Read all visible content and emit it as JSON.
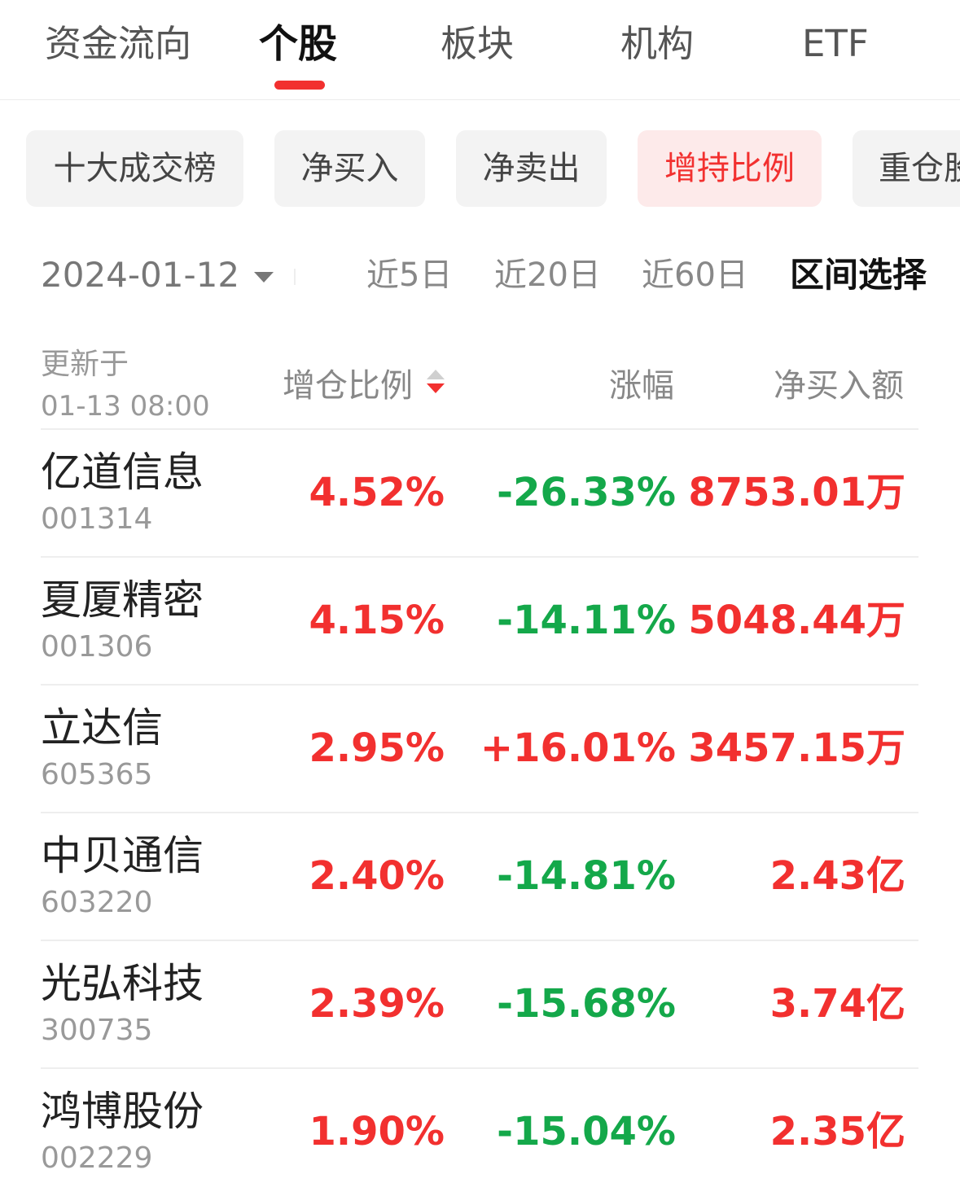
{
  "top_tabs": [
    {
      "label": "资金流向",
      "active": false
    },
    {
      "label": "个股",
      "active": true
    },
    {
      "label": "板块",
      "active": false
    },
    {
      "label": "机构",
      "active": false
    },
    {
      "label": "ETF",
      "active": false
    }
  ],
  "filter_chips": [
    {
      "label": "十大成交榜",
      "active": false
    },
    {
      "label": "净买入",
      "active": false
    },
    {
      "label": "净卖出",
      "active": false
    },
    {
      "label": "增持比例",
      "active": true
    },
    {
      "label": "重仓股",
      "active": false
    }
  ],
  "date_bar": {
    "selected_date": "2024-01-12",
    "periods": [
      "近5日",
      "近20日",
      "近60日",
      "区间选择"
    ]
  },
  "table": {
    "updated_label": "更新于",
    "updated_time": "01-13 08:00",
    "headers": {
      "ratio": "增仓比例",
      "change": "涨幅",
      "amount": "净买入额"
    },
    "sort_direction": "descending",
    "rows": [
      {
        "name": "亿道信息",
        "code": "001314",
        "ratio": "4.52%",
        "change": "-26.33%",
        "amount": "8753.01万"
      },
      {
        "name": "夏厦精密",
        "code": "001306",
        "ratio": "4.15%",
        "change": "-14.11%",
        "amount": "5048.44万"
      },
      {
        "name": "立达信",
        "code": "605365",
        "ratio": "2.95%",
        "change": "+16.01%",
        "amount": "3457.15万"
      },
      {
        "name": "中贝通信",
        "code": "603220",
        "ratio": "2.40%",
        "change": "-14.81%",
        "amount": "2.43亿"
      },
      {
        "name": "光弘科技",
        "code": "300735",
        "ratio": "2.39%",
        "change": "-15.68%",
        "amount": "3.74亿"
      },
      {
        "name": "鸿博股份",
        "code": "002229",
        "ratio": "1.90%",
        "change": "-15.04%",
        "amount": "2.35亿"
      }
    ]
  },
  "colors": {
    "up_red": "#f2302f",
    "down_green": "#14a84a",
    "accent": "#f2302f"
  }
}
